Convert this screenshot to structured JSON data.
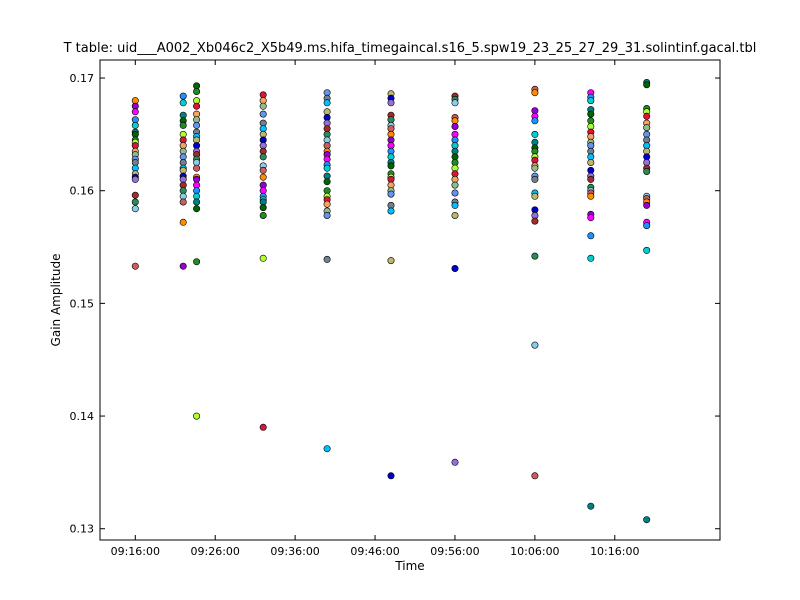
{
  "chart_data": {
    "type": "scatter",
    "title": "T table: uid___A002_Xb046c2_X5b49.ms.hifa_timegaincal.s16_5.spw19_23_25_27_29_31.solintinf.gacal.tbl",
    "xlabel": "Time",
    "ylabel": "Gain Amplitude",
    "xlim": [
      "09:11:35",
      "10:29:10"
    ],
    "ylim": [
      0.129,
      0.1716
    ],
    "x_ticks": [
      "09:16:00",
      "09:26:00",
      "09:36:00",
      "09:46:00",
      "09:56:00",
      "10:06:00",
      "10:16:00"
    ],
    "y_ticks": [
      0.13,
      0.14,
      0.15,
      0.16,
      0.17
    ],
    "y_tick_labels": [
      "0.13",
      "0.14",
      "0.15",
      "0.16",
      "0.17"
    ],
    "grid": false,
    "legend": "none",
    "palette": [
      "#FF8C00",
      "#9400D3",
      "#FF00FF",
      "#1E90FF",
      "#00CED1",
      "#008080",
      "#006400",
      "#228B22",
      "#ADFF2F",
      "#DC143C",
      "#F4A460",
      "#8FBC8F",
      "#6495ED",
      "#708090",
      "#00BFFF",
      "#BDB76B",
      "#0000CD",
      "#9370DB",
      "#A52A2A",
      "#2E8B57",
      "#87CEEB",
      "#CD5C5C"
    ],
    "series": [
      {
        "x": "09:16:00",
        "y": [
          0.168,
          0.1675,
          0.167,
          0.1663,
          0.1658,
          0.1652,
          0.165,
          0.1645,
          0.1643,
          0.164,
          0.1635,
          0.1632,
          0.1628,
          0.1625,
          0.162,
          0.1615,
          0.1612,
          0.161,
          0.1596,
          0.159,
          0.1584,
          0.1533
        ]
      },
      {
        "x": "09:22:00",
        "y": [
          0.1684,
          0.1678,
          0.1667,
          0.1662,
          0.1658,
          0.165,
          0.1645,
          0.164,
          0.1635,
          0.163,
          0.1625,
          0.162,
          0.1618,
          0.1613,
          0.161,
          0.1605,
          0.16,
          0.1595,
          0.159,
          0.1572,
          0.1533
        ]
      },
      {
        "x": "09:23:40",
        "y": [
          0.1693,
          0.1688,
          0.168,
          0.1675,
          0.1668,
          0.1663,
          0.1658,
          0.1652,
          0.1648,
          0.1645,
          0.164,
          0.1635,
          0.1632,
          0.1628,
          0.1625,
          0.162,
          0.1612,
          0.161,
          0.1605,
          0.16,
          0.1595,
          0.159,
          0.1584,
          0.1537,
          0.14
        ]
      },
      {
        "x": "09:32:00",
        "y": [
          0.1685,
          0.168,
          0.1675,
          0.1668,
          0.166,
          0.1655,
          0.165,
          0.1645,
          0.164,
          0.1635,
          0.163,
          0.1622,
          0.1618,
          0.1612,
          0.1605,
          0.16,
          0.1595,
          0.1592,
          0.159,
          0.1585,
          0.1578,
          0.154,
          0.139
        ]
      },
      {
        "x": "09:40:00",
        "y": [
          0.1687,
          0.1682,
          0.1678,
          0.167,
          0.1665,
          0.166,
          0.1655,
          0.165,
          0.1645,
          0.164,
          0.1635,
          0.1632,
          0.1628,
          0.1623,
          0.162,
          0.1613,
          0.1608,
          0.16,
          0.1595,
          0.1592,
          0.1588,
          0.1582,
          0.1578,
          0.1539,
          0.1371
        ]
      },
      {
        "x": "09:48:00",
        "y": [
          0.1686,
          0.1682,
          0.1678,
          0.1667,
          0.1663,
          0.1658,
          0.1655,
          0.165,
          0.1645,
          0.164,
          0.1635,
          0.163,
          0.1625,
          0.1622,
          0.1615,
          0.1612,
          0.161,
          0.1605,
          0.16,
          0.1597,
          0.1587,
          0.1582,
          0.1538,
          0.1347
        ]
      },
      {
        "x": "09:56:00",
        "y": [
          0.1684,
          0.1681,
          0.1678,
          0.1665,
          0.1662,
          0.1657,
          0.165,
          0.1645,
          0.164,
          0.1635,
          0.163,
          0.1625,
          0.162,
          0.1615,
          0.161,
          0.1605,
          0.1598,
          0.159,
          0.1587,
          0.1578,
          0.1531,
          0.1359
        ]
      },
      {
        "x": "10:06:00",
        "y": [
          0.169,
          0.1687,
          0.1671,
          0.1666,
          0.1662,
          0.165,
          0.1643,
          0.1638,
          0.1635,
          0.163,
          0.1627,
          0.1622,
          0.162,
          0.1613,
          0.161,
          0.1598,
          0.1595,
          0.1583,
          0.1578,
          0.1573,
          0.1542,
          0.1463,
          0.1347
        ]
      },
      {
        "x": "10:13:00",
        "y": [
          0.1687,
          0.1683,
          0.168,
          0.1672,
          0.1668,
          0.1662,
          0.1657,
          0.1652,
          0.1648,
          0.1643,
          0.164,
          0.1635,
          0.163,
          0.1625,
          0.1618,
          0.1613,
          0.161,
          0.1603,
          0.16,
          0.1598,
          0.1595,
          0.1579,
          0.1576,
          0.156,
          0.154,
          0.132
        ]
      },
      {
        "x": "10:20:00",
        "y": [
          0.1696,
          0.1694,
          0.1673,
          0.167,
          0.1666,
          0.166,
          0.1656,
          0.165,
          0.1645,
          0.164,
          0.1635,
          0.163,
          0.1625,
          0.162,
          0.1617,
          0.1595,
          0.1593,
          0.159,
          0.1587,
          0.1572,
          0.1569,
          0.1547,
          0.1308
        ]
      }
    ]
  }
}
